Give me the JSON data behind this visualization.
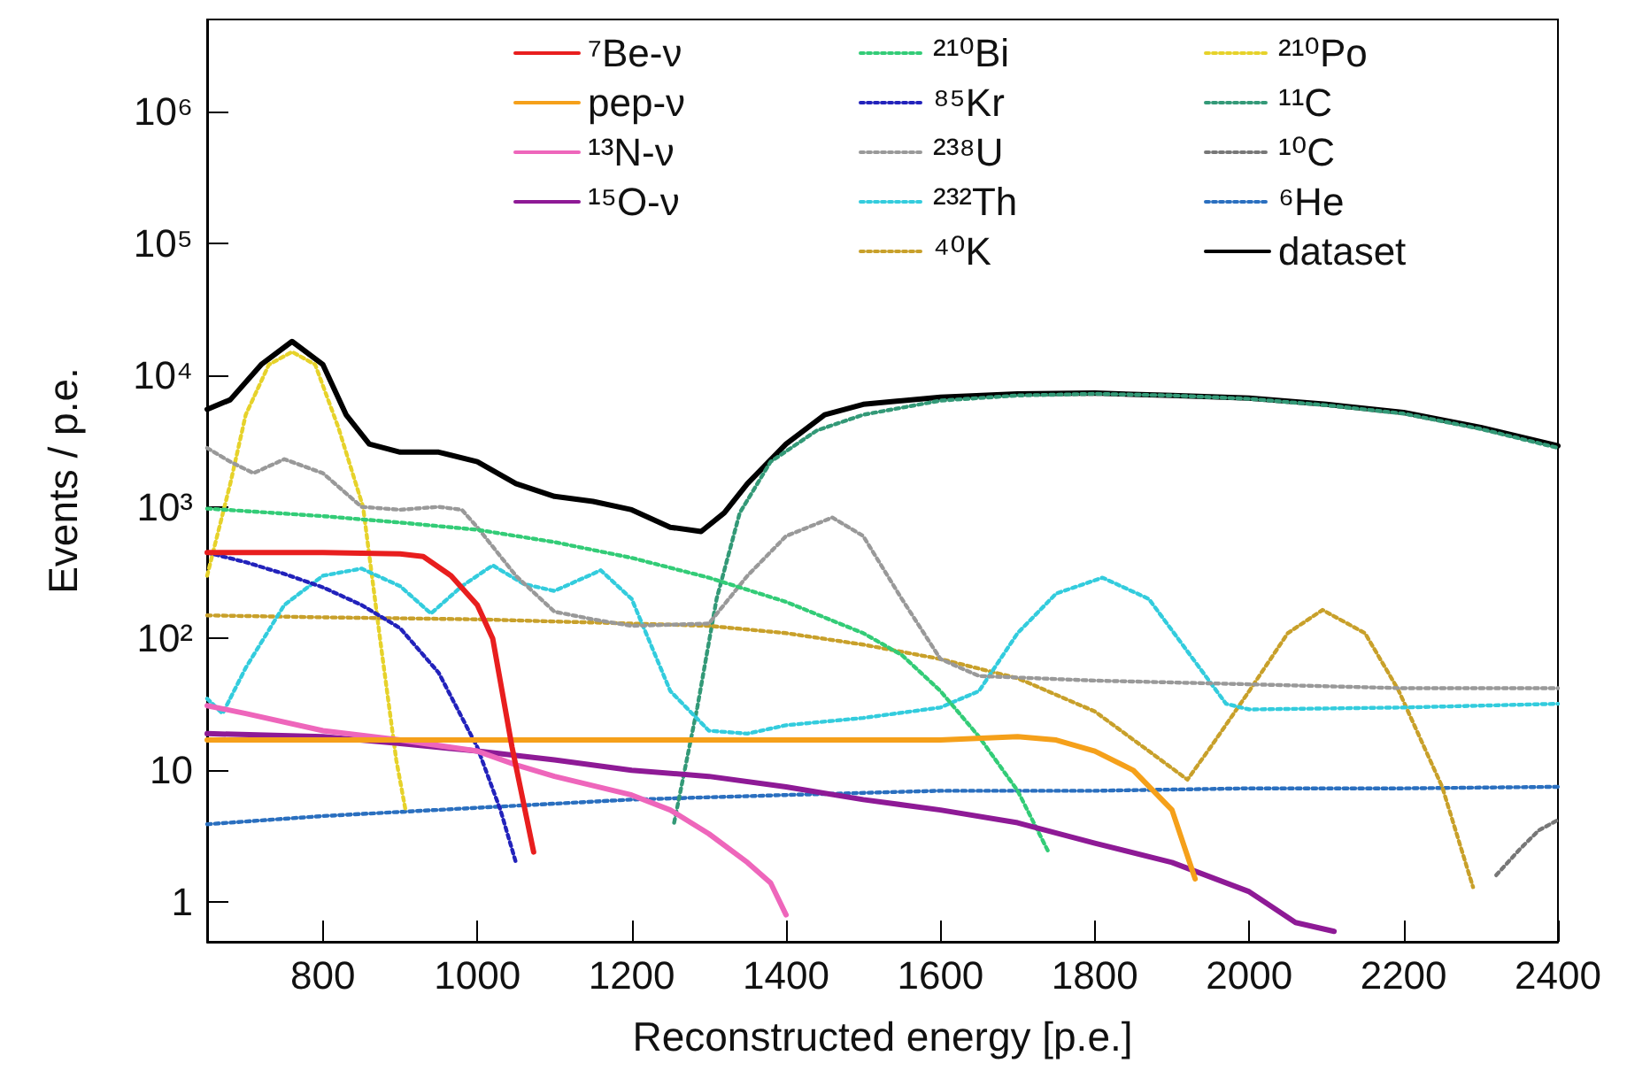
{
  "chart_data": {
    "type": "line",
    "xlabel": "Reconstructed energy [p.e.]",
    "ylabel": "Events / p.e.",
    "log": "y",
    "grid": false,
    "legend": "top",
    "marker": "none",
    "xlim": [
      650,
      2400
    ],
    "xticks": [
      800,
      1000,
      1200,
      1400,
      1600,
      1800,
      2000,
      2200,
      2400
    ],
    "ylim": [
      0.5,
      5000000
    ],
    "yticks": [
      1,
      10,
      {
        "value": 100,
        "label": "10²"
      },
      {
        "value": 1000,
        "label": "10³"
      },
      {
        "value": 10000,
        "label": "10⁴"
      },
      {
        "value": 100000,
        "label": "10⁵"
      },
      {
        "value": 1000000,
        "label": "10⁶"
      }
    ],
    "series": [
      {
        "name": "⁷Be-ν",
        "color": "#e81e1e",
        "line_style": "solid",
        "x": [
          650,
          800,
          900,
          930,
          966,
          1000,
          1020,
          1045,
          1073
        ],
        "values": [
          450,
          450,
          440,
          420,
          300,
          180,
          100,
          15,
          2.4
        ]
      },
      {
        "name": "pep-ν",
        "color": "#f5a01a",
        "line_style": "solid",
        "x": [
          650,
          800,
          1000,
          1200,
          1400,
          1600,
          1700,
          1750,
          1800,
          1850,
          1900,
          1930
        ],
        "values": [
          17,
          17,
          17,
          17,
          17,
          17,
          18,
          17,
          14,
          10,
          5,
          1.5
        ]
      },
      {
        "name": "¹³N-ν",
        "color": "#ee66bb",
        "line_style": "solid",
        "x": [
          650,
          700,
          800,
          900,
          1000,
          1050,
          1100,
          1200,
          1250,
          1300,
          1350,
          1380,
          1400
        ],
        "values": [
          31,
          27,
          20,
          17,
          14,
          11,
          9,
          6.5,
          5,
          3.3,
          2,
          1.4,
          0.8
        ]
      },
      {
        "name": "¹⁵O-ν",
        "color": "#8e1a96",
        "line_style": "solid",
        "x": [
          650,
          800,
          900,
          1000,
          1100,
          1200,
          1300,
          1400,
          1500,
          1600,
          1700,
          1800,
          1900,
          2000,
          2060,
          2110
        ],
        "values": [
          19,
          18,
          16,
          14,
          12,
          10,
          9,
          7.5,
          6,
          5,
          4,
          2.8,
          2,
          1.2,
          0.7,
          0.6
        ]
      },
      {
        "name": "²¹⁰Bi",
        "color": "#33cc77",
        "line_style": "dotted",
        "x": [
          650,
          800,
          900,
          1000,
          1100,
          1200,
          1300,
          1400,
          1500,
          1550,
          1600,
          1650,
          1700,
          1740
        ],
        "values": [
          970,
          850,
          760,
          670,
          540,
          410,
          290,
          190,
          110,
          75,
          40,
          18,
          7,
          2.4
        ]
      },
      {
        "name": "⁸⁵Kr",
        "color": "#2222bb",
        "line_style": "dotted",
        "x": [
          650,
          700,
          750,
          800,
          850,
          900,
          950,
          1000,
          1030,
          1050
        ],
        "values": [
          450,
          380,
          310,
          245,
          180,
          120,
          55,
          15,
          5,
          2
        ]
      },
      {
        "name": "²³⁸U",
        "color": "#999999",
        "line_style": "dotted",
        "x": [
          650,
          680,
          710,
          750,
          800,
          850,
          900,
          950,
          980,
          1000,
          1050,
          1100,
          1150,
          1200,
          1300,
          1350,
          1400,
          1460,
          1500,
          1550,
          1600,
          1650,
          1800,
          2000,
          2200,
          2400
        ],
        "values": [
          2800,
          2200,
          1800,
          2300,
          1800,
          1000,
          950,
          1000,
          950,
          700,
          300,
          160,
          140,
          125,
          130,
          300,
          600,
          830,
          600,
          200,
          70,
          52,
          48,
          45,
          42,
          42
        ]
      },
      {
        "name": "²³²Th",
        "color": "#33ccdd",
        "line_style": "dotted",
        "x": [
          650,
          670,
          700,
          750,
          800,
          850,
          900,
          940,
          980,
          1020,
          1060,
          1100,
          1160,
          1200,
          1250,
          1300,
          1350,
          1400,
          1500,
          1600,
          1650,
          1700,
          1750,
          1810,
          1870,
          1920,
          1970,
          2000,
          2200,
          2400
        ],
        "values": [
          35,
          27,
          60,
          180,
          300,
          340,
          250,
          155,
          250,
          360,
          260,
          230,
          330,
          200,
          40,
          20,
          19,
          22,
          25,
          30,
          40,
          110,
          220,
          290,
          200,
          80,
          32,
          29,
          30,
          32
        ]
      },
      {
        "name": "⁴⁰K",
        "color": "#c8a02a",
        "line_style": "dotted",
        "x": [
          650,
          800,
          1000,
          1200,
          1300,
          1400,
          1500,
          1600,
          1700,
          1800,
          1870,
          1920,
          1950,
          2000,
          2050,
          2095,
          2150,
          2193,
          2250,
          2290
        ],
        "values": [
          150,
          145,
          140,
          130,
          125,
          110,
          90,
          70,
          50,
          28,
          14,
          8.5,
          15,
          40,
          110,
          165,
          110,
          41,
          7.5,
          1.3
        ]
      },
      {
        "name": "²¹⁰Po",
        "color": "#e6d22a",
        "line_style": "dotted",
        "x": [
          650,
          680,
          700,
          730,
          760,
          790,
          820,
          852,
          875,
          895,
          907
        ],
        "values": [
          300,
          1500,
          5000,
          12000,
          15000,
          12000,
          4000,
          1000,
          90,
          12,
          5
        ]
      },
      {
        "name": "¹¹C",
        "color": "#339977",
        "line_style": "dotted",
        "x": [
          1255,
          1285,
          1310,
          1340,
          1380,
          1440,
          1500,
          1600,
          1700,
          1800,
          1900,
          2000,
          2100,
          2200,
          2300,
          2400
        ],
        "values": [
          4,
          30,
          200,
          900,
          2200,
          3800,
          5000,
          6400,
          7000,
          7200,
          7000,
          6600,
          5900,
          5100,
          3900,
          2800
        ]
      },
      {
        "name": "¹⁰C",
        "color": "#777777",
        "line_style": "dotted",
        "x": [
          2320,
          2350,
          2375,
          2400
        ],
        "values": [
          1.6,
          2.5,
          3.5,
          4.2
        ]
      },
      {
        "name": "⁶He",
        "color": "#2a6fbf",
        "line_style": "dotted",
        "x": [
          650,
          800,
          1000,
          1200,
          1400,
          1600,
          1800,
          2000,
          2200,
          2400
        ],
        "values": [
          3.9,
          4.5,
          5.2,
          6,
          6.5,
          7,
          7,
          7.3,
          7.3,
          7.5
        ]
      },
      {
        "name": "dataset",
        "color": "#000000",
        "line_style": "solid",
        "x": [
          650,
          680,
          720,
          760,
          800,
          830,
          860,
          900,
          950,
          1000,
          1050,
          1100,
          1150,
          1200,
          1250,
          1290,
          1320,
          1350,
          1400,
          1450,
          1500,
          1600,
          1700,
          1800,
          1900,
          2000,
          2100,
          2200,
          2300,
          2400
        ],
        "values": [
          5500,
          6500,
          12000,
          18000,
          12000,
          5000,
          3000,
          2600,
          2600,
          2200,
          1500,
          1200,
          1100,
          950,
          700,
          650,
          900,
          1500,
          3000,
          5000,
          6000,
          6800,
          7200,
          7300,
          7000,
          6700,
          6000,
          5200,
          4000,
          2900
        ]
      }
    ]
  }
}
